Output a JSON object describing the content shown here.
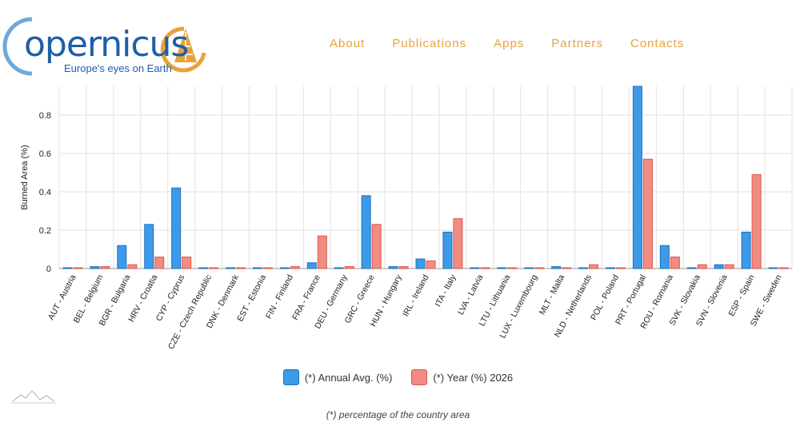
{
  "header": {
    "logo_word": "opernicus",
    "logo_tagline": "Europe's eyes on Earth",
    "nav": [
      "About",
      "Publications",
      "Apps",
      "Partners",
      "Contacts"
    ]
  },
  "colors": {
    "series_annual": "#3d9ae8",
    "series_year": "#f28c82",
    "nav": "#e8a23a",
    "brand": "#1f5ea8"
  },
  "icons": {
    "logo": "copernicus-logo-icon",
    "footer": "mountain-line-icon"
  },
  "chart_data": {
    "type": "bar",
    "ylabel": "Burned Area (%)",
    "ylim": [
      0,
      0.95
    ],
    "yticks": [
      "0",
      "0.2",
      "0.4",
      "0.6",
      "0.8"
    ],
    "grid": true,
    "legend_position": "bottom",
    "categories": [
      "AUT - Austria",
      "BEL - Belgium",
      "BGR - Bulgaria",
      "HRV - Croatia",
      "CYP - Cyprus",
      "CZE - Czech Republic",
      "DNK - Denmark",
      "EST - Estonia",
      "FIN - Finland",
      "FRA - France",
      "DEU - Germany",
      "GRC - Greece",
      "HUN - Hungary",
      "IRL - Ireland",
      "ITA - Italy",
      "LVA - Latvia",
      "LTU - Lithuania",
      "LUX - Luxembourg",
      "MLT - Malta",
      "NLD - Netherlands",
      "POL - Poland",
      "PRT - Portugal",
      "ROU - Romania",
      "SVK - Slovakia",
      "SVN - Slovenia",
      "ESP - Spain",
      "SWE - Sweden"
    ],
    "series": [
      {
        "name": "(*) Annual Avg. (%)",
        "values": [
          0.0,
          0.01,
          0.12,
          0.23,
          0.42,
          0.0,
          0.0,
          0.0,
          0.0,
          0.03,
          0.0,
          0.38,
          0.01,
          0.05,
          0.19,
          0.0,
          0.0,
          0.0,
          0.01,
          0.0,
          0.0,
          0.95,
          0.12,
          0.0,
          0.02,
          0.19,
          0.0
        ]
      },
      {
        "name": "(*) Year (%) 2026",
        "values": [
          0.0,
          0.01,
          0.02,
          0.06,
          0.06,
          0.0,
          0.0,
          0.0,
          0.01,
          0.17,
          0.01,
          0.23,
          0.01,
          0.04,
          0.26,
          0.0,
          0.0,
          0.0,
          0.0,
          0.02,
          0.0,
          0.57,
          0.06,
          0.02,
          0.02,
          0.49,
          0.0
        ]
      }
    ]
  },
  "footnote": "(*) percentage of the country area"
}
